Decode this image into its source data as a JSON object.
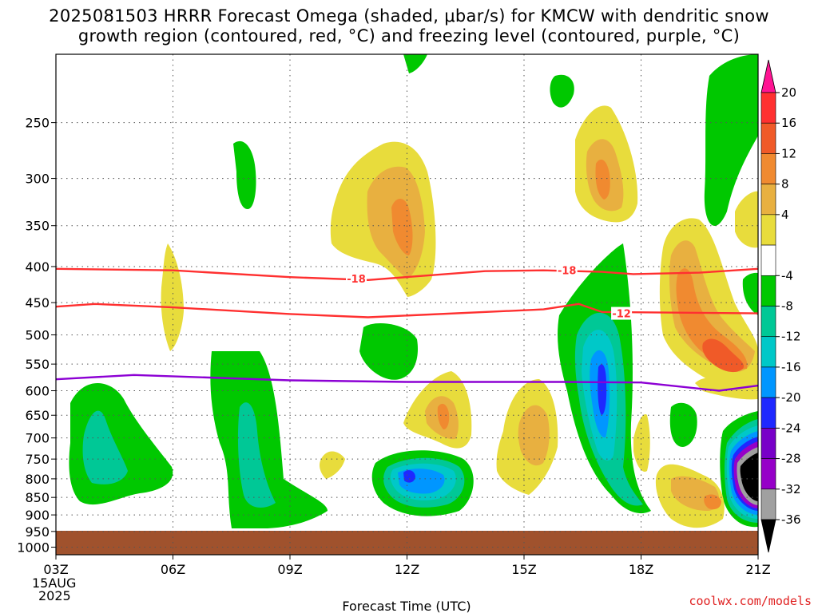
{
  "title_line1": "2025081503 HRRR Forecast Omega (shaded, μbar/s) for KMCW with dendritic snow",
  "title_line2": "growth region (contoured, red, °C) and freezing level (contoured, purple, °C)",
  "credit": "coolwx.com/models",
  "chart_data": {
    "type": "contour",
    "xlabel": "Forecast Time (UTC)",
    "ylabel": "",
    "x_ticks": [
      "03Z",
      "06Z",
      "09Z",
      "12Z",
      "15Z",
      "18Z",
      "21Z"
    ],
    "x_tick_hours": [
      3,
      6,
      9,
      12,
      15,
      18,
      21
    ],
    "x_start_date_label": [
      "15AUG",
      "2025"
    ],
    "xlim": [
      3,
      21
    ],
    "y_ticks": [
      250,
      300,
      350,
      400,
      450,
      500,
      550,
      600,
      650,
      700,
      750,
      800,
      850,
      900,
      950,
      1000
    ],
    "ylim": [
      200,
      1025
    ],
    "y_scale": "log",
    "grid": true,
    "colorbar": {
      "labels": [
        20,
        16,
        12,
        8,
        4,
        -4,
        -8,
        -12,
        -16,
        -20,
        -24,
        -28,
        -32,
        -36
      ],
      "colors": [
        "#ff1493",
        "#ff3030",
        "#f05a28",
        "#f08a30",
        "#e8b040",
        "#e8dc3c",
        "#ffffff",
        "#00c800",
        "#00c896",
        "#00c8c8",
        "#0096ff",
        "#1e28ff",
        "#7800c8",
        "#9600c8",
        "#a0a0a0",
        "#000000"
      ]
    },
    "series": [
      {
        "name": "",
        "color": "#ff3030",
        "label": "-18",
        "points": [
          [
            3,
            403
          ],
          [
            6,
            405
          ],
          [
            9,
            414
          ],
          [
            11,
            418
          ],
          [
            14,
            406
          ],
          [
            15.5,
            405
          ],
          [
            17,
            407
          ],
          [
            17.8,
            410
          ],
          [
            19.5,
            408
          ],
          [
            21,
            403
          ]
        ]
      },
      {
        "name": "",
        "color": "#ff3030",
        "label": "-12",
        "points": [
          [
            3,
            456
          ],
          [
            4,
            452
          ],
          [
            6,
            457
          ],
          [
            9,
            467
          ],
          [
            11,
            472
          ],
          [
            15.5,
            460
          ],
          [
            16.4,
            452
          ],
          [
            17,
            464
          ],
          [
            21,
            466
          ]
        ]
      },
      {
        "name": "",
        "color": "#8c00d4",
        "label": "",
        "points": [
          [
            3,
            578
          ],
          [
            5,
            570
          ],
          [
            9,
            580
          ],
          [
            12,
            583
          ],
          [
            16,
            583
          ],
          [
            18,
            584
          ],
          [
            20,
            600
          ],
          [
            21,
            590
          ]
        ]
      }
    ]
  }
}
